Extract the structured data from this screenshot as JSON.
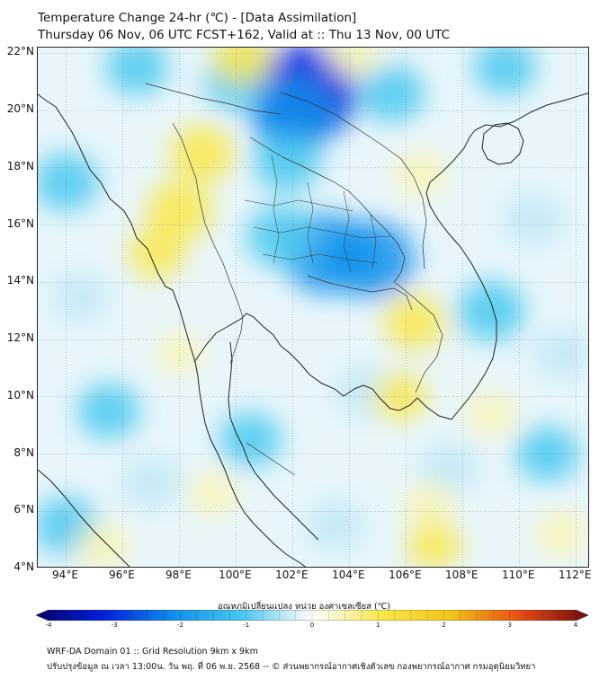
{
  "header": {
    "title_line1": "Temperature Change 24-hr (℃) - [Data Assimilation]",
    "title_line2": "Thursday 06 Nov, 06 UTC FCST+162, Valid at :: Thu 13 Nov, 00 UTC"
  },
  "map": {
    "lat_labels": [
      "22°N",
      "20°N",
      "18°N",
      "16°N",
      "14°N",
      "12°N",
      "10°N",
      "8°N",
      "6°N",
      "4°N"
    ],
    "lon_labels": [
      "94°E",
      "96°E",
      "98°E",
      "100°E",
      "102°E",
      "104°E",
      "106°E",
      "108°E",
      "110°E",
      "112°E"
    ],
    "extent": {
      "lon_min": 93,
      "lon_max": 112.5,
      "lat_min": 4,
      "lat_max": 22.2
    },
    "field_units": "°C",
    "field_anomalies": [
      {
        "lon": 102.4,
        "lat": 20.6,
        "value": -2.6
      },
      {
        "lon": 102.0,
        "lat": 19.8,
        "value": -1.7
      },
      {
        "lon": 103.2,
        "lat": 15.0,
        "value": -1.9
      },
      {
        "lon": 104.8,
        "lat": 14.8,
        "value": -1.8
      },
      {
        "lon": 101.6,
        "lat": 15.6,
        "value": -1.2
      },
      {
        "lon": 101.8,
        "lat": 18.2,
        "value": -1.1
      },
      {
        "lon": 100.0,
        "lat": 21.0,
        "value": -1.0
      },
      {
        "lon": 105.5,
        "lat": 20.6,
        "value": -1.0
      },
      {
        "lon": 109.5,
        "lat": 21.5,
        "value": -0.9
      },
      {
        "lon": 96.5,
        "lat": 21.5,
        "value": -0.9
      },
      {
        "lon": 109.0,
        "lat": 13.0,
        "value": -1.1
      },
      {
        "lon": 110.5,
        "lat": 16.2,
        "value": -0.8
      },
      {
        "lon": 94.0,
        "lat": 17.5,
        "value": -1.0
      },
      {
        "lon": 94.5,
        "lat": 13.5,
        "value": -0.7
      },
      {
        "lon": 95.5,
        "lat": 9.5,
        "value": -0.9
      },
      {
        "lon": 94.0,
        "lat": 5.5,
        "value": -1.0
      },
      {
        "lon": 97.0,
        "lat": 7.0,
        "value": -0.8
      },
      {
        "lon": 100.5,
        "lat": 8.5,
        "value": -0.9
      },
      {
        "lon": 103.5,
        "lat": 5.5,
        "value": -0.8
      },
      {
        "lon": 107.5,
        "lat": 7.5,
        "value": -0.8
      },
      {
        "lon": 111.0,
        "lat": 8.0,
        "value": -0.9
      },
      {
        "lon": 104.5,
        "lat": 10.2,
        "value": -0.7
      },
      {
        "lon": 111.5,
        "lat": 11.5,
        "value": -0.7
      },
      {
        "lon": 98.8,
        "lat": 18.5,
        "value": 1.0
      },
      {
        "lon": 98.0,
        "lat": 16.5,
        "value": 1.1
      },
      {
        "lon": 97.2,
        "lat": 15.0,
        "value": 0.7
      },
      {
        "lon": 100.2,
        "lat": 21.8,
        "value": 0.8
      },
      {
        "lon": 106.3,
        "lat": 12.6,
        "value": 0.9
      },
      {
        "lon": 105.8,
        "lat": 10.0,
        "value": 0.6
      },
      {
        "lon": 95.3,
        "lat": 4.8,
        "value": 0.5
      },
      {
        "lon": 99.2,
        "lat": 6.6,
        "value": 0.4
      },
      {
        "lon": 106.8,
        "lat": 6.2,
        "value": 0.5
      },
      {
        "lon": 107.0,
        "lat": 4.8,
        "value": 0.6
      },
      {
        "lon": 109.0,
        "lat": 9.4,
        "value": 0.4
      },
      {
        "lon": 98.0,
        "lat": 11.5,
        "value": 0.3
      },
      {
        "lon": 106.5,
        "lat": 17.8,
        "value": 0.5
      },
      {
        "lon": 104.2,
        "lat": 22.0,
        "value": 0.5
      },
      {
        "lon": 111.5,
        "lat": 5.2,
        "value": 0.5
      }
    ]
  },
  "colorbar": {
    "title": "อุณหภูมิเปลี่ยนแปลง หน่วย องศาเซลเซียส (℃)",
    "min": -4,
    "max": 4,
    "tick_labels": [
      "-4",
      "-3",
      "-2",
      "-1",
      "0",
      "1",
      "2",
      "3",
      "4"
    ],
    "colors": {
      "c_m4": "#08006b",
      "c_m3": "#0022dd",
      "c_m2": "#1090ec",
      "c_m1": "#48c8ef",
      "c_m05": "#bfe8f6",
      "c_0": "#ffffff",
      "c_05": "#fbf3b0",
      "c_1": "#f9e84a",
      "c_2": "#f3c41a",
      "c_3": "#e84d12",
      "c_4": "#700a0a"
    }
  },
  "footer": {
    "line1": "WRF-DA Domain 01 :: Grid Resolution 9km x 9km",
    "line2": "ปรับปรุงข้อมูล ณ เวลา 13:00น. วัน พฤ. ที่ 06 พ.ย. 2568 -- © ส่วนพยากรณ์อากาศเชิงตัวเลข กองพยากรณ์อากาศ กรมอุตุนิยมวิทยา"
  }
}
